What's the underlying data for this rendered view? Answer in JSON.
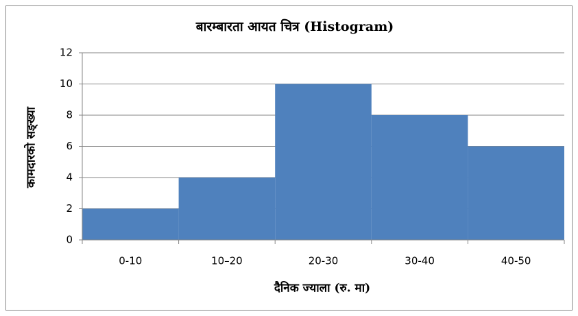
{
  "chart_data": {
    "type": "bar",
    "title": "बारम्बारता आयत चित्र (Histogram)",
    "x_label": "दैनिक ज्याला (रु. मा)",
    "y_label": "कामदारको सङ्ख्या",
    "categories": [
      "0-10",
      "10–20",
      "20-30",
      "30-40",
      "40-50"
    ],
    "values": [
      2,
      4,
      10,
      8,
      6
    ],
    "color": "#4f81bd",
    "ylim": [
      0,
      12
    ],
    "yticks": [
      0,
      2,
      4,
      6,
      8,
      10,
      12
    ],
    "grid": true
  }
}
